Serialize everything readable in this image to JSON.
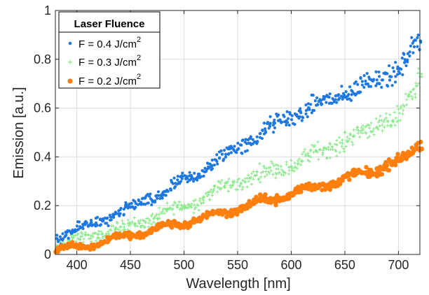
{
  "chart_data": {
    "type": "scatter",
    "title": "",
    "xlabel": "Wavelength [nm]",
    "ylabel": "Emission [a.u.]",
    "xlim": [
      380,
      720
    ],
    "ylim": [
      0,
      1
    ],
    "xticks": [
      400,
      450,
      500,
      550,
      600,
      650,
      700
    ],
    "yticks": [
      0,
      0.2,
      0.4,
      0.6,
      0.8,
      1
    ],
    "ytick_labels": [
      "0",
      "0.2",
      "0.4",
      "0.6",
      "0.8",
      "1"
    ],
    "grid": true,
    "legend": {
      "title": "Laser Fluence",
      "placement": "top-left",
      "unit_prefix": "J/cm",
      "unit_sup": "2"
    },
    "x_sampling": {
      "start": 380,
      "end": 720,
      "step": 2
    },
    "series": [
      {
        "name": "F = 0.4 J/cm2",
        "label_main": "F = 0.4 J/cm",
        "label_sup": "2",
        "color": "#1f77e0",
        "marker": "dot",
        "trend_x": [
          380,
          400,
          450,
          500,
          550,
          600,
          650,
          700,
          720
        ],
        "trend_y": [
          0.07,
          0.1,
          0.19,
          0.3,
          0.44,
          0.57,
          0.66,
          0.76,
          0.88
        ]
      },
      {
        "name": "F = 0.3 J/cm2",
        "label_main": "F = 0.3 J/cm",
        "label_sup": "2",
        "color": "#86e886",
        "marker": "plus",
        "trend_x": [
          380,
          400,
          450,
          500,
          550,
          600,
          650,
          700,
          720
        ],
        "trend_y": [
          0.04,
          0.06,
          0.12,
          0.2,
          0.3,
          0.37,
          0.47,
          0.57,
          0.73
        ]
      },
      {
        "name": "F = 0.2 J/cm2",
        "label_main": "F = 0.2 J/cm",
        "label_sup": "2",
        "color": "#ff7f0e",
        "marker": "dot",
        "trend_x": [
          380,
          400,
          450,
          500,
          550,
          600,
          650,
          700,
          720
        ],
        "trend_y": [
          0.02,
          0.03,
          0.08,
          0.13,
          0.19,
          0.25,
          0.31,
          0.38,
          0.45
        ]
      }
    ]
  }
}
